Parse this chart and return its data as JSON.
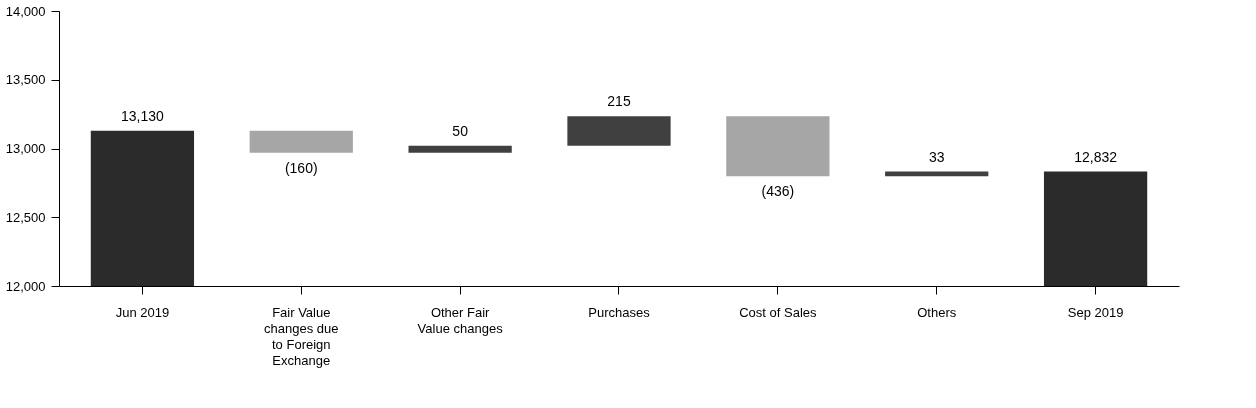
{
  "chart_data": {
    "type": "bar",
    "categories": [
      "Jun 2019",
      "Fair Value changes due to Foreign Exchange",
      "Other Fair Value changes",
      "Purchases",
      "Cost of Sales",
      "Others",
      "Sep 2019"
    ],
    "base": [
      12000,
      13130,
      12970,
      13020,
      13235,
      12799,
      12000
    ],
    "values": [
      1130,
      -160,
      50,
      215,
      -436,
      33,
      832
    ],
    "colors": [
      "#2b2b2b",
      "#a6a6a6",
      "#404040",
      "#404040",
      "#a6a6a6",
      "#404040",
      "#2b2b2b"
    ],
    "value_labels": [
      "13,130",
      "(160)",
      "50",
      "215",
      "(436)",
      "33",
      "12,832"
    ],
    "ylim": [
      12000,
      14000
    ],
    "yticks": [
      {
        "value": 12000,
        "label": "12,000"
      },
      {
        "value": 12500,
        "label": "12,500"
      },
      {
        "value": 13000,
        "label": "13,000"
      },
      {
        "value": 13500,
        "label": "13,500"
      },
      {
        "value": 14000,
        "label": "14,000"
      }
    ],
    "grid": false
  }
}
